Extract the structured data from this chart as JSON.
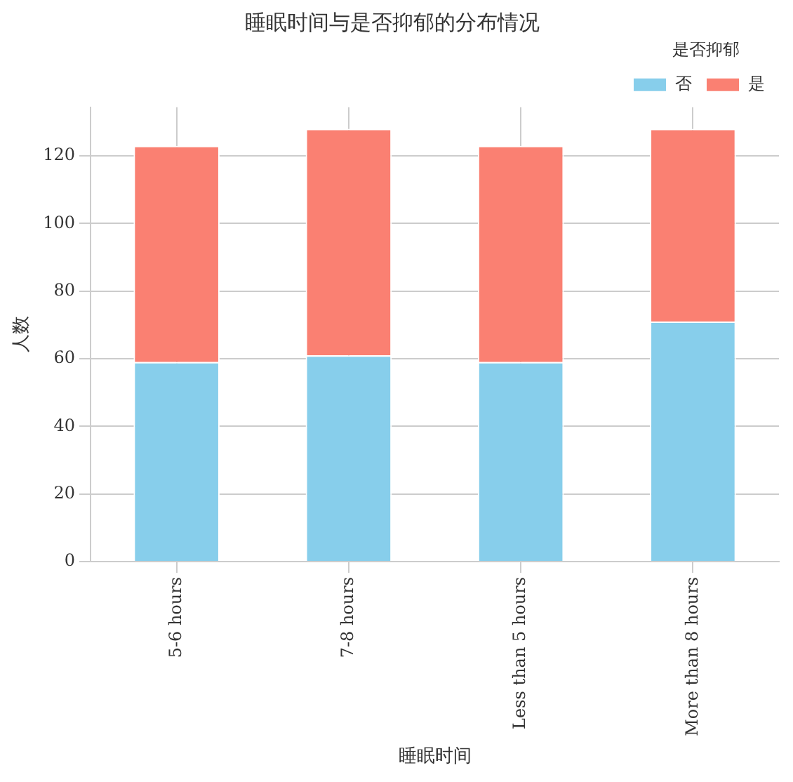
{
  "chart_data": {
    "type": "bar",
    "title": "睡眠时间与是否抑郁的分布情况",
    "xlabel": "睡眠时间",
    "ylabel": "人数",
    "legend_title": "是否抑郁",
    "categories": [
      "5-6 hours",
      "7-8 hours",
      "Less than 5 hours",
      "More than 8 hours"
    ],
    "series": [
      {
        "name": "否",
        "color": "#87ceeb",
        "values": [
          59,
          61,
          59,
          71
        ]
      },
      {
        "name": "是",
        "color": "#fa8072",
        "values": [
          64,
          67,
          64,
          57
        ]
      }
    ],
    "stacked": true,
    "ylim": [
      0,
      134.4
    ],
    "yticks": [
      0,
      20,
      40,
      60,
      80,
      100,
      120
    ],
    "grid": true,
    "legend": "top right"
  }
}
